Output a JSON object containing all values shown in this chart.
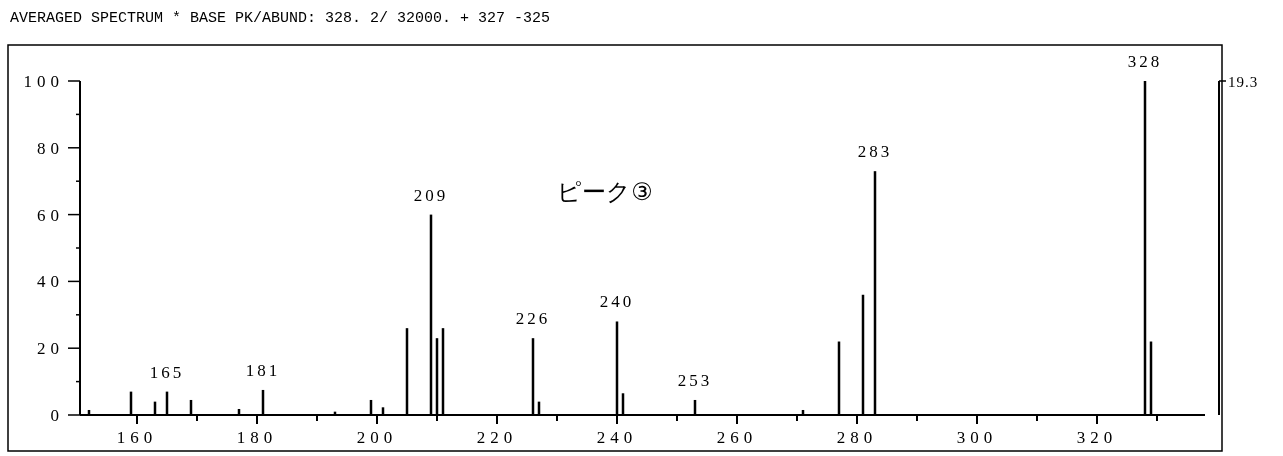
{
  "chart_data": {
    "type": "bar",
    "title": "AVERAGED SPECTRUM * BASE PK/ABUND: 328. 2/ 32000. + 327 -325",
    "x": [
      152,
      159,
      163,
      165,
      169,
      177,
      181,
      193,
      199,
      201,
      205,
      209,
      210,
      211,
      226,
      227,
      240,
      241,
      253,
      271,
      277,
      281,
      283,
      328,
      329
    ],
    "series": [
      {
        "color": "#000000",
        "values": [
          1.5,
          7,
          4,
          7,
          4.5,
          1.8,
          7.5,
          1,
          4.5,
          2.3,
          26,
          60,
          23,
          26,
          23,
          4,
          28,
          6.5,
          4.5,
          1.5,
          22,
          36,
          73,
          100,
          22
        ]
      }
    ],
    "xlim": [
      150.5,
      338
    ],
    "xticks": [
      160,
      {
        "value": 170,
        "label": null
      },
      180,
      {
        "value": 190,
        "label": null
      },
      200,
      {
        "value": 210,
        "label": null
      },
      220,
      {
        "value": 230,
        "label": null
      },
      240,
      {
        "value": 250,
        "label": null
      },
      260,
      {
        "value": 270,
        "label": null
      },
      280,
      {
        "value": 290,
        "label": null
      },
      300,
      {
        "value": 310,
        "label": null
      },
      320,
      {
        "value": 330,
        "label": null
      }
    ],
    "ylim": [
      0,
      100
    ],
    "yticks": [
      0,
      {
        "value": 10,
        "label": null
      },
      20,
      {
        "value": 30,
        "label": null
      },
      40,
      {
        "value": 50,
        "label": null
      },
      60,
      {
        "value": 70,
        "label": null
      },
      80,
      {
        "value": 90,
        "label": null
      },
      100
    ],
    "annotations": [
      {
        "text": "165",
        "x": 165,
        "y": 7
      },
      {
        "text": "181",
        "x": 181,
        "y": 7.5
      },
      {
        "text": "209",
        "x": 209,
        "y": 60
      },
      {
        "text": "226",
        "x": 226,
        "y": 23
      },
      {
        "text": "240",
        "x": 240,
        "y": 28
      },
      {
        "text": "253",
        "x": 253,
        "y": 4.5
      },
      {
        "text": "283",
        "x": 283,
        "y": 73
      },
      {
        "text": "328",
        "x": 328,
        "y": 100
      },
      "ピーク③",
      "19.3"
    ]
  }
}
